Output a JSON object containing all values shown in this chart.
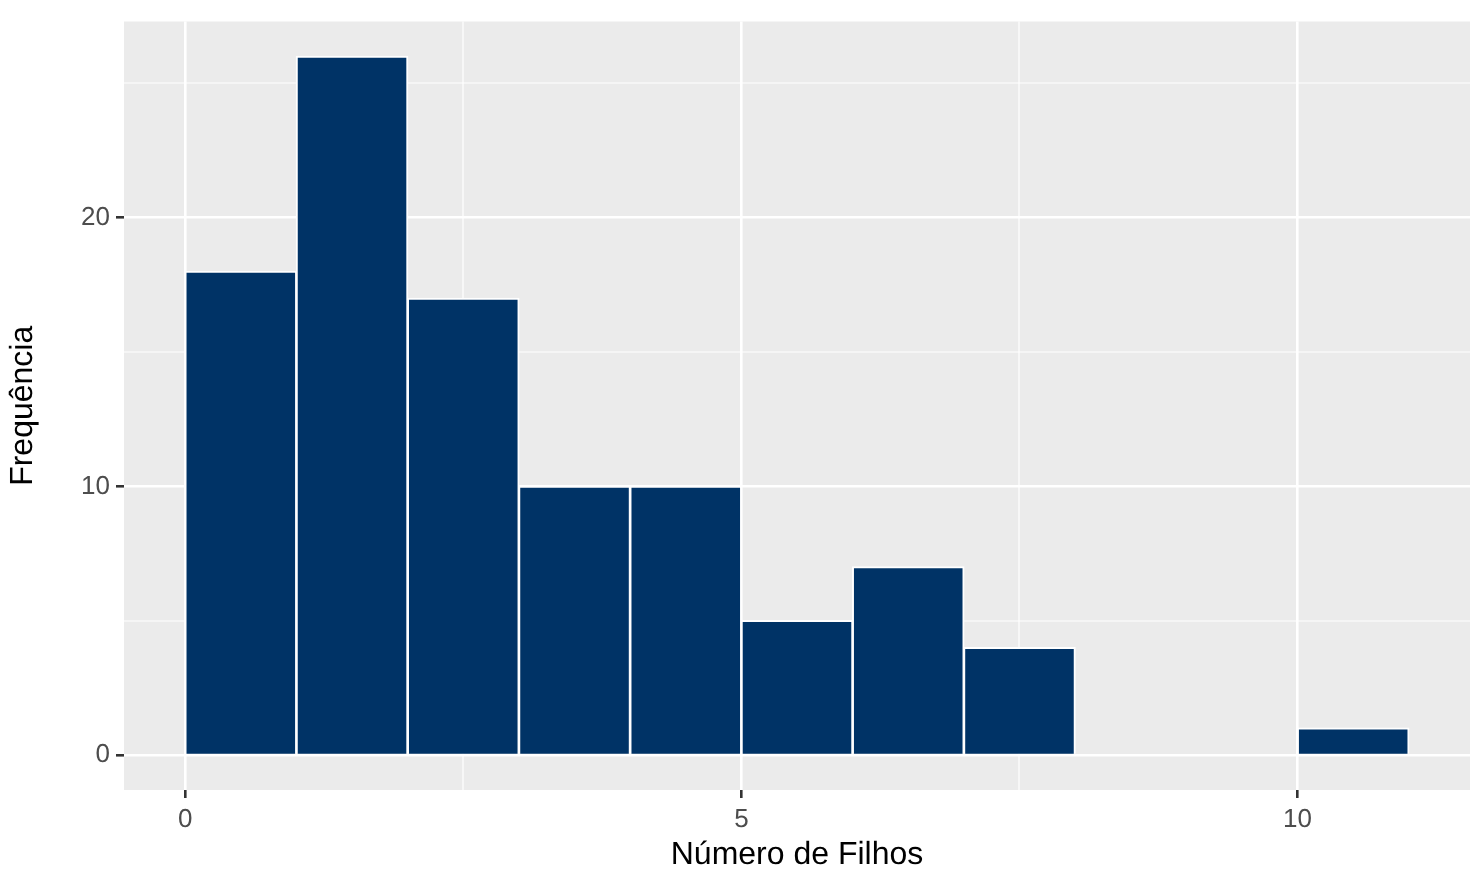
{
  "chart_data": {
    "type": "histogram",
    "xlabel": "Número de Filhos",
    "ylabel": "Frequência",
    "bins": [
      0,
      1,
      2,
      3,
      4,
      5,
      6,
      7,
      8,
      9,
      10,
      11
    ],
    "values": [
      18,
      26,
      17,
      10,
      10,
      5,
      7,
      4,
      0,
      0,
      1
    ],
    "color": "#003366",
    "xlim": [
      -0.55,
      11.55
    ],
    "ylim": [
      -1.3,
      27.3
    ],
    "xticks": [
      0,
      {
        "value": 2.5,
        "label": null
      },
      5,
      {
        "value": 7.5,
        "label": null
      },
      10
    ],
    "yticks": [
      0,
      {
        "value": 5,
        "label": null
      },
      10,
      {
        "value": 15,
        "label": null
      },
      20,
      {
        "value": 25,
        "label": null
      }
    ],
    "grid": true,
    "legend": false
  }
}
